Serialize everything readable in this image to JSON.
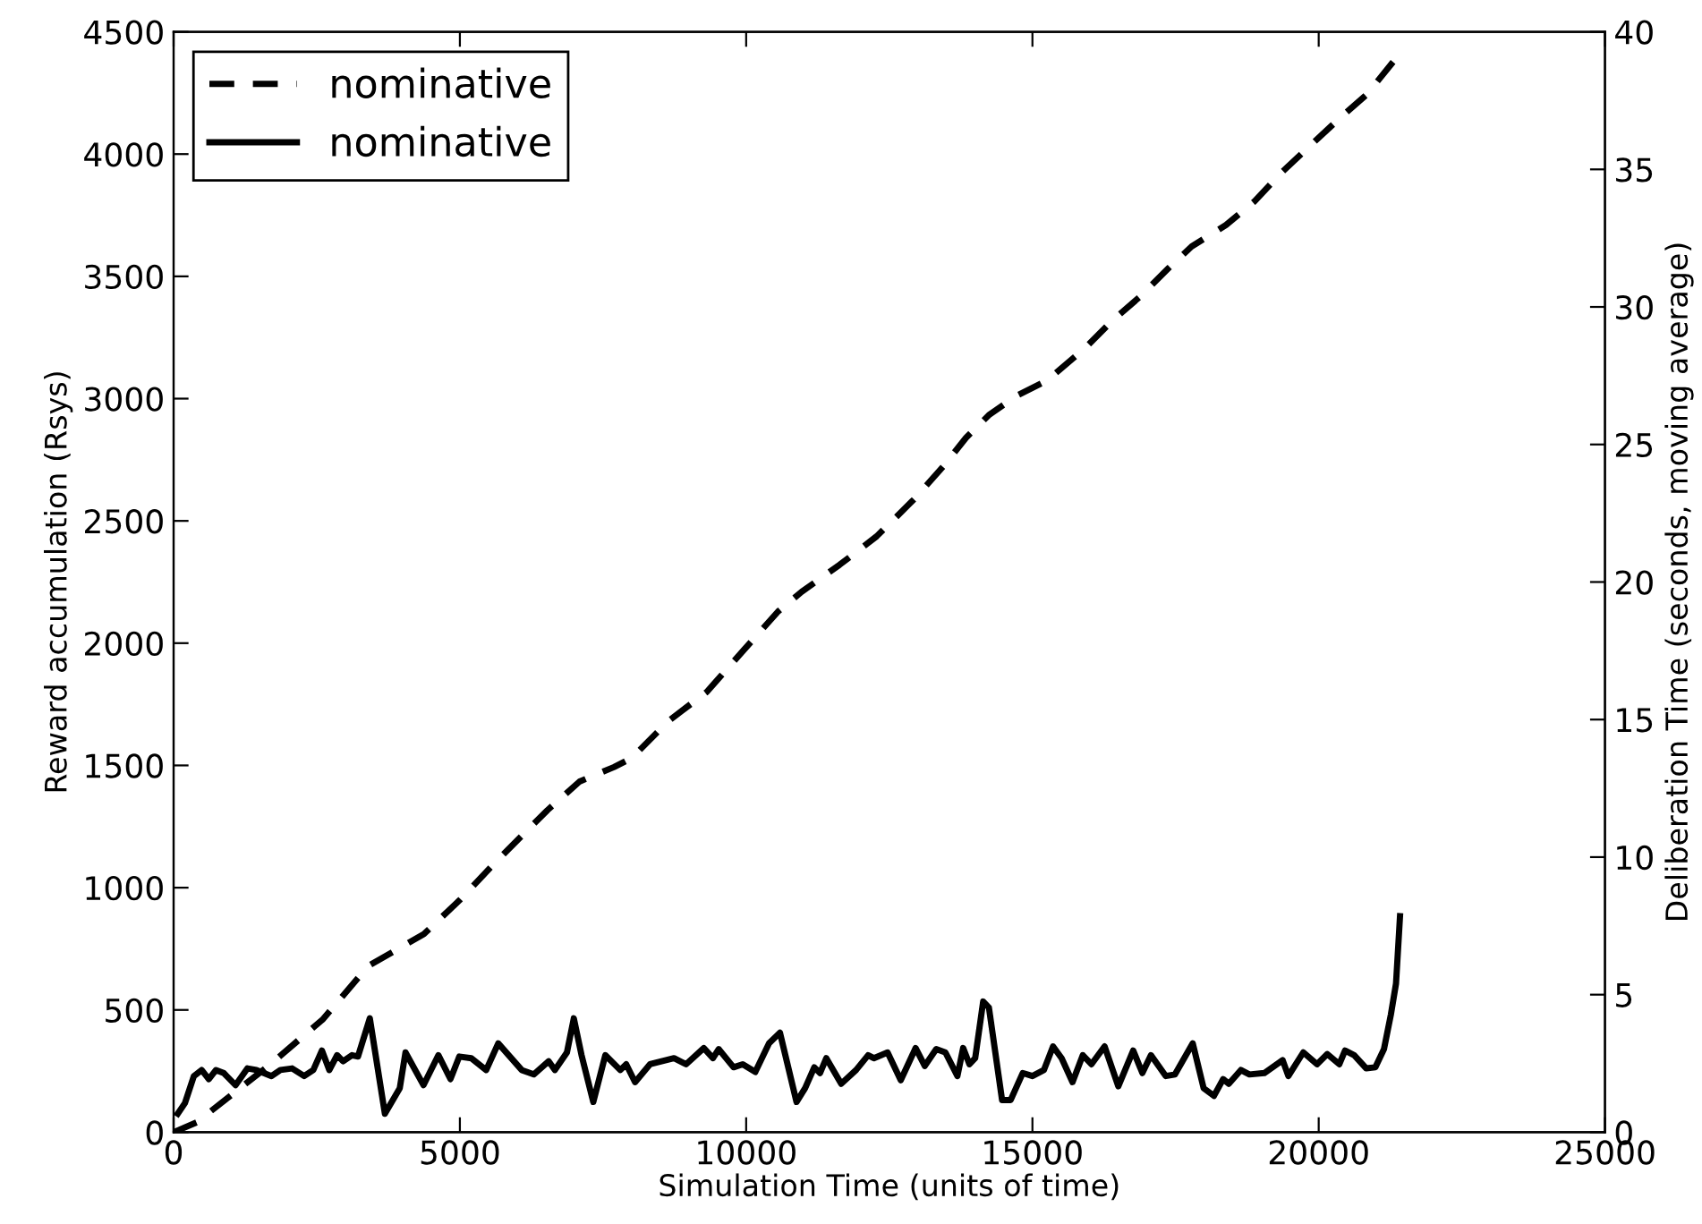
{
  "chart_data": {
    "type": "line",
    "xlabel": "Simulation Time (units of time)",
    "ylabel": "Reward accumulation (Rsys)",
    "y2label": "Deliberation Time (seconds, moving average)",
    "xlim": [
      0,
      25000
    ],
    "xticks": [
      0,
      5000,
      10000,
      15000,
      20000,
      25000
    ],
    "ylim": [
      0,
      4500
    ],
    "yticks": [
      0,
      500,
      1000,
      1500,
      2000,
      2500,
      3000,
      3500,
      4000,
      4500
    ],
    "y2lim": [
      0,
      40
    ],
    "y2ticks": [
      0,
      5,
      10,
      15,
      20,
      25,
      30,
      35,
      40
    ],
    "legend": "top left",
    "grid": false,
    "series": [
      {
        "name": "nominative",
        "color": "#000000",
        "line_style": "dashed",
        "axis": "y",
        "x": [
          0,
          400,
          1650,
          2600,
          3400,
          4370,
          5000,
          5625,
          6530,
          7090,
          7690,
          8000,
          8650,
          9310,
          9970,
          10560,
          10970,
          11630,
          12280,
          12940,
          13440,
          13840,
          14250,
          14750,
          15250,
          15910,
          16410,
          16880,
          17380,
          17780,
          18380,
          18870,
          19340,
          19840,
          20340,
          20840,
          21320
        ],
        "values": [
          0,
          40,
          270,
          460,
          680,
          810,
          950,
          1105,
          1317,
          1434,
          1493,
          1530,
          1683,
          1800,
          1975,
          2130,
          2210,
          2320,
          2437,
          2590,
          2722,
          2840,
          2935,
          3015,
          3073,
          3205,
          3322,
          3417,
          3534,
          3622,
          3710,
          3805,
          3922,
          4032,
          4141,
          4244,
          4383
        ]
      },
      {
        "name": "nominative",
        "color": "#000000",
        "line_style": "solid",
        "axis": "y2",
        "x": [
          73,
          198,
          354,
          490,
          615,
          740,
          875,
          1083,
          1290,
          1448,
          1710,
          1865,
          2070,
          2280,
          2440,
          2590,
          2720,
          2855,
          2960,
          3115,
          3220,
          3427,
          3690,
          3950,
          4050,
          4365,
          4625,
          4835,
          4990,
          5200,
          5460,
          5670,
          6080,
          6290,
          6550,
          6660,
          6870,
          6990,
          7125,
          7330,
          7540,
          7800,
          7905,
          8060,
          8320,
          8740,
          8950,
          9260,
          9420,
          9520,
          9780,
          9940,
          10160,
          10400,
          10590,
          10880,
          11030,
          11190,
          11290,
          11400,
          11660,
          11920,
          12130,
          12230,
          12470,
          12700,
          12960,
          13120,
          13320,
          13480,
          13690,
          13790,
          13900,
          14000,
          14140,
          14240,
          14470,
          14620,
          14830,
          15000,
          15200,
          15360,
          15510,
          15700,
          15880,
          16030,
          16260,
          16500,
          16760,
          16920,
          17070,
          17330,
          17490,
          17800,
          17990,
          18170,
          18330,
          18430,
          18640,
          18790,
          19050,
          19370,
          19470,
          19730,
          19970,
          20150,
          20360,
          20460,
          20620,
          20830,
          20990,
          21140,
          21260,
          21350,
          21420
        ],
        "values": [
          0.67,
          1.06,
          2.04,
          2.26,
          1.93,
          2.26,
          2.15,
          1.71,
          2.32,
          2.26,
          2.04,
          2.26,
          2.32,
          2.04,
          2.26,
          2.97,
          2.26,
          2.8,
          2.58,
          2.8,
          2.75,
          4.14,
          0.67,
          1.6,
          2.9,
          1.71,
          2.8,
          1.93,
          2.75,
          2.69,
          2.26,
          3.23,
          2.26,
          2.1,
          2.58,
          2.26,
          2.9,
          4.14,
          2.8,
          1.1,
          2.8,
          2.26,
          2.47,
          1.82,
          2.47,
          2.69,
          2.47,
          3.06,
          2.69,
          3.02,
          2.36,
          2.47,
          2.19,
          3.23,
          3.62,
          1.1,
          1.6,
          2.36,
          2.15,
          2.69,
          1.76,
          2.26,
          2.8,
          2.69,
          2.9,
          1.89,
          3.06,
          2.41,
          3.02,
          2.9,
          2.04,
          3.06,
          2.47,
          2.69,
          4.75,
          4.53,
          1.17,
          1.17,
          2.15,
          2.04,
          2.26,
          3.12,
          2.69,
          1.82,
          2.8,
          2.47,
          3.12,
          1.67,
          2.97,
          2.15,
          2.8,
          2.04,
          2.1,
          3.23,
          1.6,
          1.32,
          1.93,
          1.76,
          2.26,
          2.1,
          2.15,
          2.62,
          2.04,
          2.9,
          2.47,
          2.84,
          2.47,
          2.97,
          2.8,
          2.32,
          2.36,
          3.02,
          4.27,
          5.4,
          7.85
        ]
      }
    ]
  }
}
